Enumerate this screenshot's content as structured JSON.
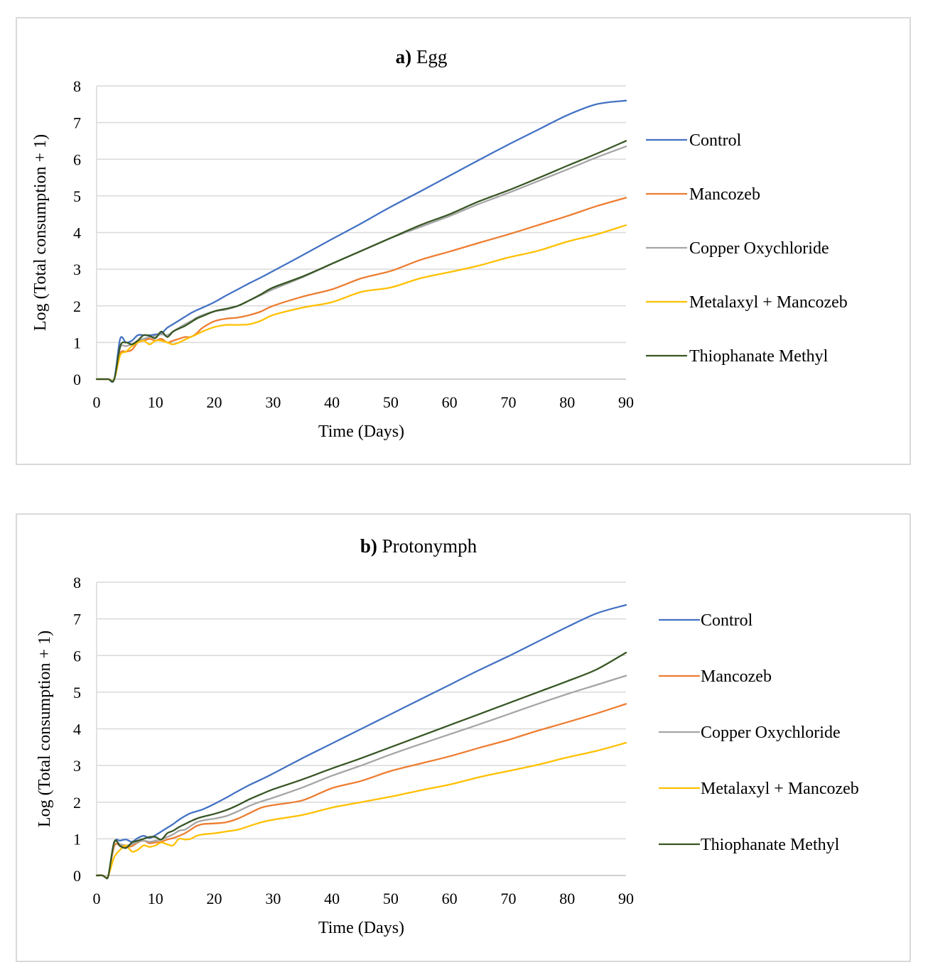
{
  "charts": [
    {
      "id": "a",
      "title_prefix": "a)",
      "title_text": "Egg",
      "legend": [
        "Control",
        "Mancozeb",
        "Copper Oxychloride",
        "Metalaxyl + Mancozeb",
        "Thiophanate Methyl"
      ]
    },
    {
      "id": "b",
      "title_prefix": "b)",
      "title_text": "Protonymph",
      "legend": [
        "Control",
        "Mancozeb",
        "Copper Oxychloride",
        "Metalaxyl + Mancozeb",
        "Thiophanate Methyl"
      ]
    }
  ],
  "chart_data": [
    {
      "type": "line",
      "title": "a) Egg",
      "xlabel": "Time (Days)",
      "ylabel": "Log (Total consumption + 1)",
      "xlim": [
        0,
        90
      ],
      "ylim": [
        0,
        8
      ],
      "x_ticks": [
        0,
        10,
        20,
        30,
        40,
        50,
        60,
        70,
        80,
        90
      ],
      "y_ticks": [
        0,
        1,
        2,
        3,
        4,
        5,
        6,
        7,
        8
      ],
      "grid": "horizontal",
      "legend_position": "right",
      "series": [
        {
          "name": "Control",
          "color": "#4472c4",
          "x": [
            0,
            1,
            2,
            3,
            4,
            5,
            6,
            7,
            8,
            9,
            10,
            11,
            12,
            13,
            14,
            15,
            16,
            17,
            18,
            20,
            22,
            24,
            26,
            28,
            30,
            35,
            40,
            45,
            50,
            55,
            60,
            65,
            70,
            75,
            80,
            85,
            90
          ],
          "y": [
            0,
            0,
            0,
            0,
            1.1,
            1.0,
            1.05,
            1.2,
            1.2,
            1.2,
            1.22,
            1.25,
            1.4,
            1.5,
            1.6,
            1.7,
            1.8,
            1.88,
            1.95,
            2.1,
            2.28,
            2.45,
            2.62,
            2.78,
            2.95,
            3.38,
            3.82,
            4.25,
            4.7,
            5.12,
            5.55,
            5.98,
            6.4,
            6.8,
            7.2,
            7.5,
            7.6
          ]
        },
        {
          "name": "Mancozeb",
          "color": "#ed7d31",
          "x": [
            0,
            1,
            2,
            3,
            4,
            5,
            6,
            7,
            8,
            9,
            10,
            11,
            12,
            13,
            14,
            15,
            16,
            17,
            18,
            20,
            22,
            24,
            26,
            28,
            30,
            35,
            40,
            45,
            50,
            55,
            60,
            65,
            70,
            75,
            80,
            85,
            90
          ],
          "y": [
            0,
            0,
            0,
            0,
            0.7,
            0.75,
            0.8,
            1.0,
            1.05,
            1.1,
            1.05,
            1.1,
            1.0,
            1.05,
            1.1,
            1.15,
            1.15,
            1.25,
            1.4,
            1.58,
            1.65,
            1.68,
            1.75,
            1.85,
            2.0,
            2.25,
            2.45,
            2.75,
            2.95,
            3.25,
            3.48,
            3.72,
            3.95,
            4.2,
            4.45,
            4.72,
            4.95
          ]
        },
        {
          "name": "Copper Oxychloride",
          "color": "#a5a5a5",
          "x": [
            0,
            1,
            2,
            3,
            4,
            5,
            6,
            7,
            8,
            9,
            10,
            11,
            12,
            13,
            14,
            15,
            16,
            17,
            18,
            20,
            22,
            24,
            26,
            28,
            30,
            35,
            40,
            45,
            50,
            55,
            60,
            65,
            70,
            75,
            80,
            85,
            90
          ],
          "y": [
            0,
            0,
            0,
            0,
            0.85,
            0.9,
            0.95,
            1.05,
            1.1,
            1.15,
            1.18,
            1.22,
            1.2,
            1.3,
            1.4,
            1.5,
            1.58,
            1.68,
            1.75,
            1.85,
            1.9,
            2.0,
            2.15,
            2.3,
            2.45,
            2.78,
            3.15,
            3.5,
            3.85,
            4.15,
            4.45,
            4.78,
            5.08,
            5.4,
            5.72,
            6.05,
            6.35
          ]
        },
        {
          "name": "Metalaxyl + Mancozeb",
          "color": "#ffc000",
          "x": [
            0,
            1,
            2,
            3,
            4,
            5,
            6,
            7,
            8,
            9,
            10,
            11,
            12,
            13,
            14,
            15,
            16,
            17,
            18,
            20,
            22,
            24,
            26,
            28,
            30,
            35,
            40,
            45,
            50,
            55,
            60,
            65,
            70,
            75,
            80,
            85,
            90
          ],
          "y": [
            0,
            0,
            0,
            0,
            0.65,
            0.75,
            0.9,
            1.0,
            1.05,
            0.95,
            1.05,
            1.05,
            1.0,
            0.95,
            1.0,
            1.08,
            1.15,
            1.22,
            1.3,
            1.42,
            1.48,
            1.48,
            1.5,
            1.6,
            1.75,
            1.95,
            2.1,
            2.38,
            2.5,
            2.75,
            2.92,
            3.1,
            3.32,
            3.5,
            3.75,
            3.95,
            4.2
          ]
        },
        {
          "name": "Thiophanate Methyl",
          "color": "#375623",
          "x": [
            0,
            1,
            2,
            3,
            4,
            5,
            6,
            7,
            8,
            9,
            10,
            11,
            12,
            13,
            14,
            15,
            16,
            17,
            18,
            20,
            22,
            24,
            26,
            28,
            30,
            35,
            40,
            45,
            50,
            55,
            60,
            65,
            70,
            75,
            80,
            85,
            90
          ],
          "y": [
            0,
            0,
            0,
            0,
            0.9,
            1.0,
            0.95,
            1.05,
            1.2,
            1.18,
            1.12,
            1.3,
            1.15,
            1.3,
            1.38,
            1.45,
            1.55,
            1.65,
            1.72,
            1.85,
            1.92,
            2.0,
            2.15,
            2.32,
            2.5,
            2.8,
            3.15,
            3.5,
            3.85,
            4.2,
            4.5,
            4.85,
            5.15,
            5.48,
            5.82,
            6.15,
            6.5
          ]
        }
      ]
    },
    {
      "type": "line",
      "title": "b) Protonymph",
      "xlabel": "Time (Days)",
      "ylabel": "Log (Total consumption + 1)",
      "xlim": [
        0,
        90
      ],
      "ylim": [
        0,
        8
      ],
      "x_ticks": [
        0,
        10,
        20,
        30,
        40,
        50,
        60,
        70,
        80,
        90
      ],
      "y_ticks": [
        0,
        1,
        2,
        3,
        4,
        5,
        6,
        7,
        8
      ],
      "grid": "horizontal",
      "legend_position": "right",
      "series": [
        {
          "name": "Control",
          "color": "#4472c4",
          "x": [
            0,
            1,
            1.5,
            2,
            3,
            4,
            5,
            6,
            7,
            8,
            9,
            10,
            11,
            12,
            13,
            14,
            15,
            16,
            17,
            18,
            20,
            22,
            24,
            26,
            28,
            30,
            35,
            40,
            45,
            50,
            55,
            60,
            65,
            70,
            75,
            80,
            85,
            90
          ],
          "y": [
            0,
            0,
            -0.05,
            0,
            0.9,
            0.95,
            0.98,
            0.92,
            1.02,
            1.08,
            1.02,
            1.1,
            1.2,
            1.3,
            1.4,
            1.52,
            1.62,
            1.7,
            1.75,
            1.8,
            1.95,
            2.12,
            2.3,
            2.47,
            2.62,
            2.78,
            3.2,
            3.6,
            4.0,
            4.4,
            4.8,
            5.2,
            5.6,
            5.98,
            6.38,
            6.78,
            7.15,
            7.38
          ]
        },
        {
          "name": "Mancozeb",
          "color": "#ed7d31",
          "x": [
            0,
            1,
            1.5,
            2,
            3,
            4,
            5,
            6,
            7,
            8,
            9,
            10,
            11,
            12,
            13,
            14,
            15,
            16,
            17,
            18,
            20,
            22,
            24,
            26,
            28,
            30,
            35,
            40,
            45,
            50,
            55,
            60,
            65,
            70,
            75,
            80,
            85,
            90
          ],
          "y": [
            0,
            0,
            -0.05,
            0,
            0.8,
            0.82,
            0.78,
            0.8,
            0.9,
            0.95,
            0.88,
            0.9,
            0.92,
            0.98,
            1.02,
            1.08,
            1.15,
            1.25,
            1.35,
            1.4,
            1.42,
            1.45,
            1.55,
            1.7,
            1.85,
            1.92,
            2.05,
            2.38,
            2.58,
            2.85,
            3.05,
            3.25,
            3.48,
            3.7,
            3.95,
            4.18,
            4.42,
            4.68
          ]
        },
        {
          "name": "Copper Oxychloride",
          "color": "#a5a5a5",
          "x": [
            0,
            1,
            1.5,
            2,
            3,
            4,
            5,
            6,
            7,
            8,
            9,
            10,
            11,
            12,
            13,
            14,
            15,
            16,
            17,
            18,
            20,
            22,
            24,
            26,
            28,
            30,
            35,
            40,
            45,
            50,
            55,
            60,
            65,
            70,
            75,
            80,
            85,
            90
          ],
          "y": [
            0,
            0,
            -0.05,
            0,
            0.88,
            0.85,
            0.82,
            0.85,
            0.92,
            0.95,
            0.92,
            0.95,
            0.98,
            1.05,
            1.12,
            1.22,
            1.25,
            1.35,
            1.45,
            1.5,
            1.55,
            1.62,
            1.75,
            1.9,
            2.02,
            2.12,
            2.4,
            2.72,
            3.0,
            3.3,
            3.58,
            3.85,
            4.12,
            4.4,
            4.68,
            4.95,
            5.2,
            5.45
          ]
        },
        {
          "name": "Metalaxyl + Mancozeb",
          "color": "#ffc000",
          "x": [
            0,
            1,
            1.5,
            2,
            3,
            4,
            5,
            6,
            7,
            8,
            9,
            10,
            11,
            12,
            13,
            14,
            15,
            16,
            17,
            18,
            20,
            22,
            24,
            26,
            28,
            30,
            35,
            40,
            45,
            50,
            55,
            60,
            65,
            70,
            75,
            80,
            85,
            90
          ],
          "y": [
            0,
            0,
            -0.05,
            0,
            0.5,
            0.7,
            0.82,
            0.65,
            0.7,
            0.82,
            0.78,
            0.82,
            0.9,
            0.85,
            0.82,
            1.0,
            0.98,
            1.0,
            1.08,
            1.12,
            1.15,
            1.2,
            1.25,
            1.35,
            1.45,
            1.52,
            1.65,
            1.85,
            2.0,
            2.15,
            2.32,
            2.48,
            2.68,
            2.85,
            3.02,
            3.22,
            3.4,
            3.62
          ]
        },
        {
          "name": "Thiophanate Methyl",
          "color": "#375623",
          "x": [
            0,
            1,
            1.5,
            2,
            3,
            4,
            5,
            6,
            7,
            8,
            9,
            10,
            11,
            12,
            13,
            14,
            15,
            16,
            17,
            18,
            20,
            22,
            24,
            26,
            28,
            30,
            35,
            40,
            45,
            50,
            55,
            60,
            65,
            70,
            75,
            80,
            85,
            90
          ],
          "y": [
            0,
            0,
            -0.05,
            0,
            0.92,
            0.8,
            0.75,
            0.9,
            0.95,
            1.0,
            1.05,
            1.05,
            0.98,
            1.15,
            1.22,
            1.32,
            1.4,
            1.48,
            1.55,
            1.6,
            1.68,
            1.78,
            1.92,
            2.08,
            2.22,
            2.35,
            2.62,
            2.92,
            3.2,
            3.5,
            3.8,
            4.1,
            4.4,
            4.7,
            5.0,
            5.3,
            5.62,
            6.08
          ]
        }
      ]
    }
  ]
}
